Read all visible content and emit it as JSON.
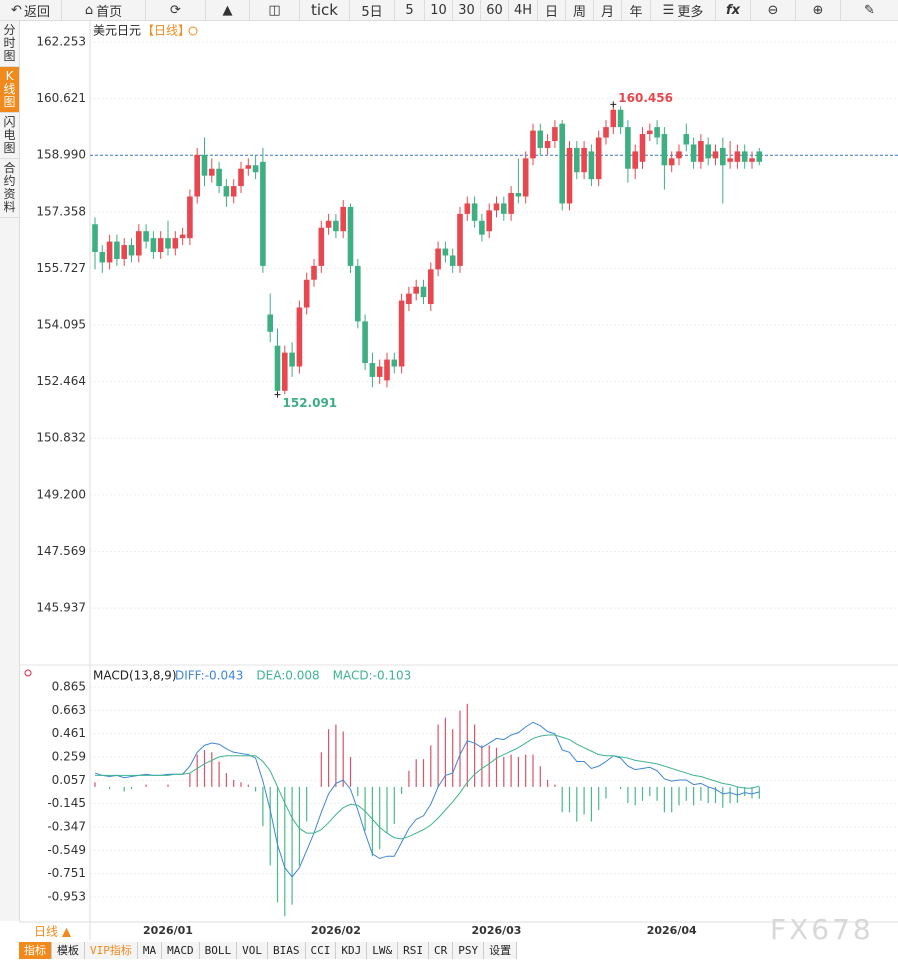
{
  "ui": {
    "toolbar": [
      "返回",
      "首页",
      "tick",
      "5日",
      "5",
      "10",
      "30",
      "60",
      "4H",
      "日",
      "周",
      "月",
      "年",
      "更多",
      "fx"
    ],
    "sidebar": [
      "分时图",
      "K线图",
      "闪电图",
      "合约资料"
    ],
    "symbol": "美元日元",
    "period_tag": "【日线】",
    "period_label": "日线 ▲",
    "tabs": [
      "指标",
      "模板",
      "VIP指标",
      "MA",
      "MACD",
      "BOLL",
      "VOL",
      "BIAS",
      "CCI",
      "KDJ",
      "LW&",
      "RSI",
      "CR",
      "PSY",
      "设置"
    ],
    "watermark": "FX678"
  },
  "chart_data": [
    {
      "type": "candlestick",
      "up_color": "#e8474f",
      "down_color": "#3daf82",
      "grid": true,
      "categories": [
        null,
        null,
        null,
        null,
        null,
        null,
        null,
        null,
        null,
        null,
        "2026/01",
        null,
        null,
        null,
        null,
        null,
        null,
        null,
        null,
        null,
        null,
        null,
        null,
        null,
        null,
        null,
        null,
        null,
        null,
        null,
        null,
        null,
        null,
        "2026/02",
        null,
        null,
        null,
        null,
        null,
        null,
        null,
        null,
        null,
        null,
        null,
        null,
        null,
        null,
        null,
        null,
        null,
        null,
        null,
        null,
        null,
        "2026/03",
        null,
        null,
        null,
        null,
        null,
        null,
        null,
        null,
        null,
        null,
        null,
        null,
        null,
        null,
        null,
        null,
        null,
        null,
        null,
        null,
        null,
        null,
        null,
        "2026/04",
        null,
        null,
        null,
        null,
        null,
        null,
        null,
        null,
        null,
        null,
        null,
        null
      ],
      "open": [
        157.0,
        156.2,
        155.9,
        156.5,
        156.0,
        156.4,
        156.1,
        156.8,
        156.6,
        156.2,
        156.6,
        156.3,
        156.6,
        156.6,
        157.8,
        159.0,
        158.4,
        158.6,
        158.1,
        157.8,
        158.1,
        158.6,
        158.7,
        158.8,
        154.4,
        153.5,
        152.2,
        153.3,
        152.9,
        154.6,
        155.4,
        155.8,
        156.9,
        157.1,
        156.8,
        157.5,
        155.8,
        154.2,
        153.0,
        152.6,
        152.5,
        153.1,
        152.9,
        154.7,
        155.0,
        155.2,
        154.7,
        155.7,
        156.3,
        156.1,
        155.8,
        157.3,
        157.6,
        157.1,
        156.8,
        157.4,
        157.6,
        157.3,
        157.9,
        157.8,
        158.9,
        159.7,
        159.2,
        159.4,
        159.9,
        157.6,
        159.2,
        158.5,
        159.1,
        158.3,
        159.5,
        159.8,
        160.3,
        159.8,
        158.6,
        158.8,
        159.6,
        159.8,
        159.6,
        158.7,
        158.9,
        159.6,
        159.3,
        158.8,
        159.3,
        158.9,
        159.2,
        158.8,
        158.8,
        159.1,
        158.8,
        159.1
      ],
      "high": [
        157.2,
        156.4,
        156.7,
        156.7,
        156.6,
        156.6,
        157.0,
        157.0,
        156.8,
        156.8,
        157.1,
        156.8,
        156.9,
        158.0,
        159.2,
        159.5,
        158.9,
        158.8,
        158.3,
        158.3,
        158.8,
        158.9,
        159.0,
        159.2,
        155.0,
        154.0,
        153.5,
        153.6,
        154.8,
        155.6,
        156.0,
        157.1,
        157.3,
        157.3,
        157.7,
        157.6,
        156.0,
        154.4,
        153.3,
        153.1,
        153.3,
        153.3,
        155.0,
        155.2,
        155.4,
        155.4,
        155.9,
        156.5,
        156.5,
        156.3,
        157.5,
        157.8,
        157.8,
        157.3,
        157.6,
        157.8,
        157.8,
        158.1,
        158.9,
        159.1,
        159.9,
        159.9,
        159.6,
        160.0,
        160.0,
        159.4,
        159.4,
        159.4,
        159.3,
        159.7,
        160.0,
        160.456,
        160.4,
        160.0,
        159.3,
        159.8,
        159.9,
        160.0,
        159.8,
        159.1,
        159.3,
        159.9,
        159.5,
        159.6,
        159.5,
        159.3,
        159.5,
        159.4,
        159.3,
        159.3,
        159.1,
        159.2
      ],
      "low": [
        155.7,
        155.6,
        155.7,
        155.8,
        155.8,
        155.9,
        155.9,
        156.3,
        156.0,
        156.0,
        156.1,
        156.1,
        156.4,
        156.4,
        157.6,
        158.1,
        158.2,
        157.9,
        157.5,
        157.6,
        157.9,
        158.4,
        158.3,
        155.6,
        153.6,
        152.091,
        152.1,
        152.6,
        152.7,
        154.4,
        155.2,
        155.6,
        156.7,
        156.6,
        156.6,
        155.6,
        154.0,
        152.8,
        152.3,
        152.4,
        152.3,
        152.7,
        152.7,
        154.5,
        154.8,
        154.7,
        154.5,
        155.5,
        155.9,
        155.6,
        155.6,
        157.1,
        156.9,
        156.5,
        156.6,
        157.2,
        157.1,
        157.1,
        157.6,
        157.6,
        158.7,
        159.0,
        159.0,
        159.2,
        157.4,
        157.4,
        158.3,
        158.3,
        158.1,
        158.1,
        159.3,
        159.6,
        159.6,
        158.2,
        158.3,
        158.6,
        159.4,
        159.3,
        158.0,
        158.5,
        158.7,
        159.1,
        158.6,
        158.6,
        158.7,
        158.7,
        157.6,
        158.6,
        158.6,
        158.6,
        158.6,
        158.7
      ],
      "close": [
        156.2,
        155.9,
        156.5,
        156.0,
        156.4,
        156.1,
        156.8,
        156.5,
        156.2,
        156.6,
        156.3,
        156.6,
        156.7,
        157.8,
        159.0,
        158.4,
        158.6,
        158.1,
        157.8,
        158.1,
        158.6,
        158.7,
        158.5,
        155.8,
        153.9,
        152.2,
        153.3,
        152.9,
        154.6,
        155.4,
        155.8,
        156.9,
        157.1,
        156.8,
        157.5,
        155.8,
        154.2,
        153.0,
        152.6,
        152.9,
        153.1,
        152.9,
        154.8,
        155.0,
        155.2,
        154.9,
        155.7,
        156.3,
        156.1,
        155.8,
        157.3,
        157.6,
        157.1,
        156.7,
        157.4,
        157.6,
        157.3,
        157.9,
        157.8,
        158.9,
        159.7,
        159.2,
        159.4,
        159.8,
        157.6,
        159.2,
        158.5,
        159.2,
        158.3,
        159.5,
        159.8,
        160.3,
        159.8,
        158.6,
        159.1,
        159.6,
        159.7,
        159.5,
        158.7,
        158.9,
        159.1,
        159.3,
        158.8,
        159.4,
        158.9,
        159.1,
        158.7,
        158.9,
        159.1,
        158.8,
        158.9,
        158.8
      ],
      "price_line": 158.99,
      "price_line_color": "#3a78c2",
      "ylim": [
        144.44,
        162.83
      ],
      "yticks": [
        162.253,
        160.621,
        {
          "value": 158.99,
          "label": "158.990"
        },
        157.358,
        155.727,
        154.095,
        152.464,
        150.832,
        {
          "value": 149.2,
          "label": "149.200"
        },
        147.569,
        145.937
      ]
    },
    {
      "type": "macd",
      "title": "MACD(13,8,9)",
      "series": [
        {
          "name": "DIFF:-0.043",
          "color": "#3f86d6",
          "values": [
            0.12,
            0.1,
            0.09,
            0.1,
            0.08,
            0.09,
            0.1,
            0.11,
            0.1,
            0.1,
            0.11,
            0.11,
            0.11,
            0.18,
            0.3,
            0.36,
            0.38,
            0.37,
            0.33,
            0.3,
            0.29,
            0.28,
            0.25,
            0.05,
            -0.2,
            -0.5,
            -0.7,
            -0.78,
            -0.7,
            -0.55,
            -0.4,
            -0.22,
            -0.06,
            0.03,
            0.06,
            -0.02,
            -0.2,
            -0.4,
            -0.58,
            -0.62,
            -0.6,
            -0.6,
            -0.48,
            -0.36,
            -0.28,
            -0.25,
            -0.15,
            0.0,
            0.1,
            0.12,
            0.28,
            0.4,
            0.38,
            0.34,
            0.38,
            0.42,
            0.41,
            0.45,
            0.47,
            0.52,
            0.56,
            0.53,
            0.48,
            0.46,
            0.32,
            0.3,
            0.22,
            0.22,
            0.16,
            0.18,
            0.22,
            0.27,
            0.25,
            0.18,
            0.15,
            0.16,
            0.17,
            0.14,
            0.07,
            0.05,
            0.06,
            0.06,
            0.02,
            0.03,
            0.0,
            -0.02,
            -0.06,
            -0.05,
            -0.07,
            -0.05,
            -0.06,
            -0.043
          ]
        },
        {
          "name": "DEA:0.008",
          "color": "#3fb38f",
          "values": [
            0.1,
            0.1,
            0.1,
            0.1,
            0.1,
            0.1,
            0.1,
            0.1,
            0.1,
            0.1,
            0.1,
            0.11,
            0.11,
            0.12,
            0.16,
            0.2,
            0.23,
            0.26,
            0.27,
            0.27,
            0.27,
            0.27,
            0.27,
            0.22,
            0.14,
            0.0,
            -0.14,
            -0.27,
            -0.36,
            -0.4,
            -0.4,
            -0.37,
            -0.31,
            -0.24,
            -0.18,
            -0.15,
            -0.16,
            -0.21,
            -0.28,
            -0.35,
            -0.4,
            -0.44,
            -0.45,
            -0.43,
            -0.4,
            -0.37,
            -0.33,
            -0.27,
            -0.2,
            -0.13,
            -0.05,
            0.04,
            0.11,
            0.16,
            0.2,
            0.25,
            0.28,
            0.31,
            0.34,
            0.38,
            0.42,
            0.44,
            0.45,
            0.45,
            0.43,
            0.41,
            0.37,
            0.34,
            0.31,
            0.28,
            0.27,
            0.27,
            0.26,
            0.25,
            0.23,
            0.22,
            0.21,
            0.2,
            0.18,
            0.16,
            0.14,
            0.12,
            0.1,
            0.09,
            0.07,
            0.05,
            0.03,
            0.02,
            0.0,
            -0.01,
            -0.01,
            0.008
          ]
        },
        {
          "name": "MACD:-0.103",
          "color": "#3fb38f",
          "up_color": "#d9536a",
          "down_color": "#4bb98a",
          "values": [
            0.04,
            0.0,
            -0.02,
            0.0,
            -0.04,
            -0.02,
            0.0,
            0.02,
            0.0,
            0.0,
            0.02,
            0.0,
            0.0,
            0.12,
            0.28,
            0.32,
            0.3,
            0.22,
            0.12,
            0.06,
            0.04,
            0.02,
            -0.04,
            -0.34,
            -0.68,
            -1.0,
            -1.12,
            -1.02,
            -0.68,
            -0.3,
            0.0,
            0.3,
            0.5,
            0.54,
            0.48,
            0.26,
            -0.08,
            -0.38,
            -0.6,
            -0.54,
            -0.4,
            -0.32,
            -0.06,
            0.14,
            0.24,
            0.24,
            0.36,
            0.54,
            0.6,
            0.5,
            0.66,
            0.72,
            0.54,
            0.36,
            0.36,
            0.34,
            0.26,
            0.28,
            0.26,
            0.28,
            0.28,
            0.18,
            0.06,
            0.02,
            -0.22,
            -0.22,
            -0.3,
            -0.24,
            -0.3,
            -0.2,
            -0.1,
            0.0,
            -0.02,
            -0.14,
            -0.16,
            -0.12,
            -0.08,
            -0.12,
            -0.22,
            -0.22,
            -0.16,
            -0.12,
            -0.16,
            -0.12,
            -0.14,
            -0.14,
            -0.18,
            -0.14,
            -0.14,
            -0.08,
            -0.1,
            -0.103
          ]
        }
      ],
      "ylim": [
        -1.17,
        1.03
      ],
      "yticks": [
        0.865,
        0.663,
        0.461,
        0.259,
        0.057,
        -0.145,
        -0.347,
        -0.549,
        -0.751,
        -0.953
      ]
    }
  ]
}
